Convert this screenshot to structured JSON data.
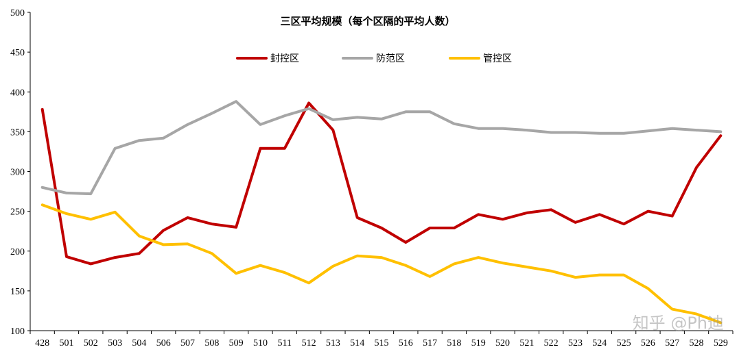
{
  "chart_data": {
    "type": "line",
    "title": "三区平均规模（每个区隔的平均人数）",
    "xlabel": "",
    "ylabel": "",
    "ylim": [
      100,
      500
    ],
    "y_ticks": [
      100,
      150,
      200,
      250,
      300,
      350,
      400,
      450,
      500
    ],
    "grid": false,
    "legend_position": "top-center",
    "categories": [
      "428",
      "501",
      "502",
      "503",
      "504",
      "506",
      "507",
      "508",
      "509",
      "510",
      "511",
      "512",
      "513",
      "514",
      "515",
      "516",
      "517",
      "518",
      "519",
      "520",
      "521",
      "522",
      "523",
      "524",
      "525",
      "526",
      "527",
      "528",
      "529"
    ],
    "series": [
      {
        "name": "封控区",
        "color": "#C00000",
        "values": [
          378,
          193,
          184,
          192,
          197,
          226,
          242,
          234,
          230,
          329,
          329,
          386,
          352,
          242,
          229,
          211,
          229,
          229,
          246,
          240,
          248,
          252,
          236,
          246,
          234,
          250,
          244,
          305,
          345
        ]
      },
      {
        "name": "防范区",
        "color": "#A6A6A6",
        "values": [
          280,
          273,
          272,
          329,
          339,
          342,
          359,
          373,
          388,
          359,
          370,
          379,
          365,
          368,
          366,
          375,
          375,
          360,
          354,
          354,
          352,
          349,
          349,
          348,
          348,
          351,
          354,
          352,
          350
        ]
      },
      {
        "name": "管控区",
        "color": "#FFC000",
        "values": [
          258,
          247,
          240,
          249,
          219,
          208,
          209,
          197,
          172,
          182,
          173,
          160,
          181,
          194,
          192,
          182,
          168,
          184,
          192,
          185,
          180,
          175,
          167,
          170,
          170,
          153,
          127,
          121,
          110
        ]
      }
    ]
  },
  "watermark": "知乎 @Ph迪"
}
